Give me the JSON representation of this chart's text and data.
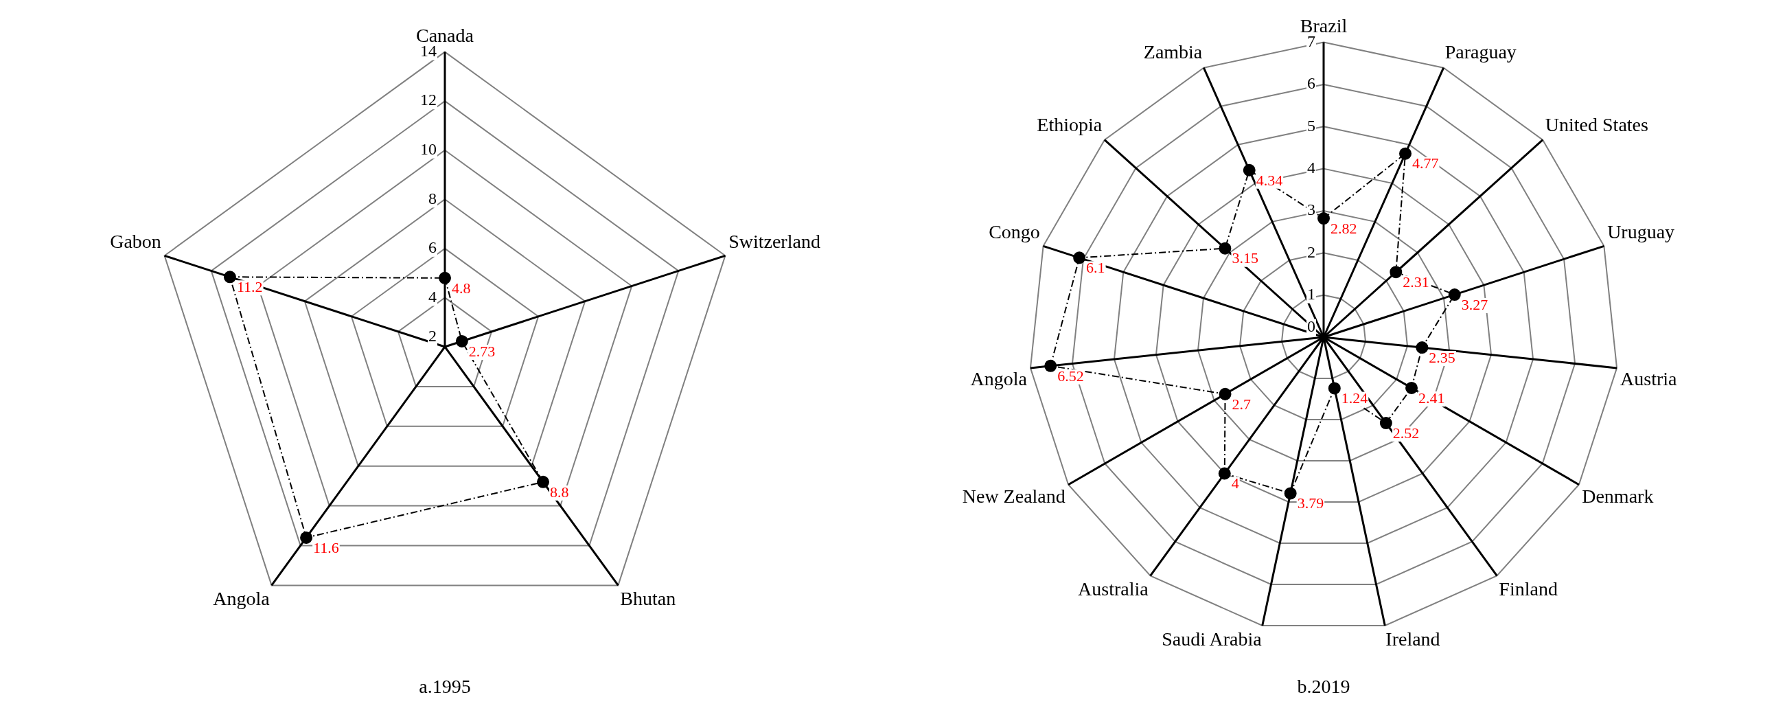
{
  "chart_data": [
    {
      "type": "radar",
      "title": "a.1995",
      "categories": [
        "Canada",
        "Switzerland",
        "Bhutan",
        "Angola",
        "Gabon"
      ],
      "series": [
        {
          "color": "#000000",
          "values": [
            4.8,
            2.73,
            8.8,
            11.6,
            11.2
          ]
        }
      ],
      "ylim": [
        2,
        14
      ],
      "yticks": [
        2,
        4,
        6,
        8,
        10,
        12,
        14
      ],
      "grid": true,
      "legend": false,
      "marker": "circle",
      "line_style": "dashed",
      "data_labels": true
    },
    {
      "type": "radar",
      "title": "b.2019",
      "categories": [
        "Brazil",
        "Paraguay",
        "United States",
        "Uruguay",
        "Austria",
        "Denmark",
        "Finland",
        "Ireland",
        "Saudi Arabia",
        "Australia",
        "New Zealand",
        "Angola",
        "Congo",
        "Ethiopia",
        "Zambia"
      ],
      "series": [
        {
          "color": "#000000",
          "values": [
            2.82,
            4.77,
            2.31,
            3.27,
            2.35,
            2.41,
            2.52,
            1.24,
            3.79,
            4,
            2.7,
            6.52,
            6.1,
            3.15,
            4.34
          ]
        }
      ],
      "ylim": [
        0,
        7
      ],
      "yticks": [
        0,
        1,
        2,
        3,
        4,
        5,
        6,
        7
      ],
      "grid": true,
      "legend": false,
      "marker": "circle",
      "line_style": "dashed",
      "data_labels": true
    }
  ]
}
